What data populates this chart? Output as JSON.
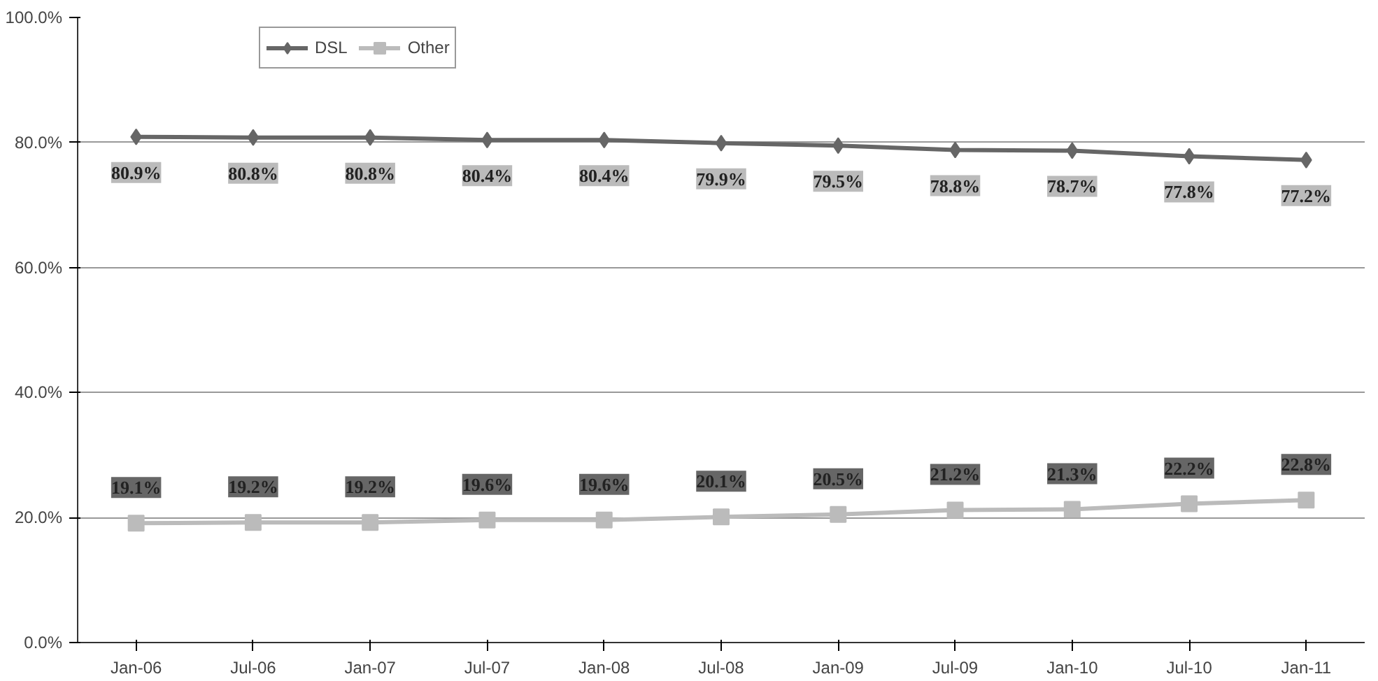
{
  "chart_data": {
    "type": "line",
    "categories": [
      "Jan-06",
      "Jul-06",
      "Jan-07",
      "Jul-07",
      "Jan-08",
      "Jul-08",
      "Jan-09",
      "Jul-09",
      "Jan-10",
      "Jul-10",
      "Jan-11"
    ],
    "series": [
      {
        "name": "DSL",
        "color": "#666666",
        "marker": "diamond",
        "values": [
          80.9,
          80.8,
          80.8,
          80.4,
          80.4,
          79.9,
          79.5,
          78.8,
          78.7,
          77.8,
          77.2
        ],
        "value_labels": [
          "80.9%",
          "80.8%",
          "80.8%",
          "80.4%",
          "80.4%",
          "79.9%",
          "79.5%",
          "78.8%",
          "78.7%",
          "77.8%",
          "77.2%"
        ]
      },
      {
        "name": "Other",
        "color": "#bbbbbb",
        "marker": "square",
        "values": [
          19.1,
          19.2,
          19.2,
          19.6,
          19.6,
          20.1,
          20.5,
          21.2,
          21.3,
          22.2,
          22.8
        ],
        "value_labels": [
          "19.1%",
          "19.2%",
          "19.2%",
          "19.6%",
          "19.6%",
          "20.1%",
          "20.5%",
          "21.2%",
          "21.3%",
          "22.2%",
          "22.8%"
        ]
      }
    ],
    "ylim": [
      0,
      100
    ],
    "yticks": [
      {
        "value": 0,
        "label": "0.0%"
      },
      {
        "value": 20,
        "label": "20.0%"
      },
      {
        "value": 40,
        "label": "40.0%"
      },
      {
        "value": 60,
        "label": "60.0%"
      },
      {
        "value": 80,
        "label": "80.0%"
      },
      {
        "value": 100,
        "label": "100.0%"
      }
    ],
    "grid": "y",
    "legend": "top left",
    "line_style": "solid"
  }
}
